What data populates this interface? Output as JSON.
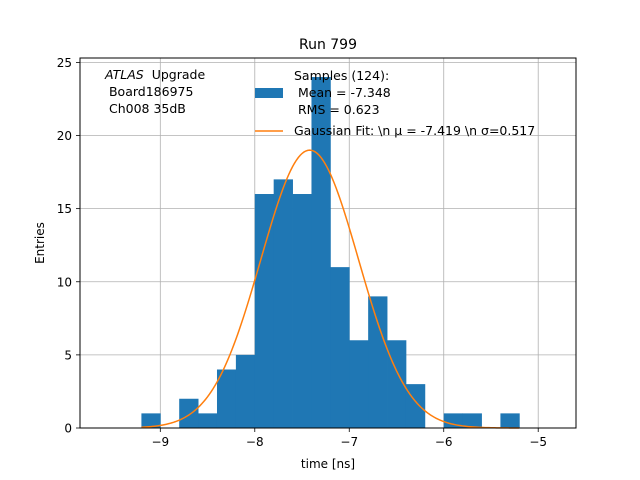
{
  "chart_data": {
    "type": "bar",
    "title": "Run 799",
    "xlabel": "time [ns]",
    "ylabel": "Entries",
    "xlim": [
      -9.85,
      -4.6
    ],
    "ylim": [
      0,
      25.3
    ],
    "grid": true,
    "xticks": [
      -9,
      -8,
      -7,
      -6,
      -5
    ],
    "xtick_labels": [
      "−9",
      "−8",
      "−7",
      "−6",
      "−5"
    ],
    "yticks": [
      0,
      5,
      10,
      15,
      20,
      25
    ],
    "ytick_labels": [
      "0",
      "5",
      "10",
      "15",
      "20",
      "25"
    ],
    "annotation": {
      "lines": [
        "Upgrade",
        " Board186975",
        " Ch008 35dB"
      ],
      "italic_prefix": "ATLAS"
    },
    "legend": {
      "position": "top-center",
      "histogram_label_lines": [
        "Samples (124):",
        " Mean = -7.348",
        " RMS = 0.623"
      ],
      "fit_label": "Gaussian Fit: \\n μ = -7.419 \\n σ=0.517"
    },
    "bin_edges": [
      -9.2,
      -9.0,
      -8.8,
      -8.6,
      -8.4,
      -8.2,
      -8.0,
      -7.8,
      -7.6,
      -7.4,
      -7.2,
      -7.0,
      -6.8,
      -6.6,
      -6.4,
      -6.2,
      -6.0,
      -5.8,
      -5.6,
      -5.4,
      -5.2,
      -5.0
    ],
    "series": [
      {
        "name": "Samples (124)",
        "type": "histogram",
        "color": "#1f77b4",
        "values": [
          1,
          0,
          2,
          1,
          4,
          5,
          16,
          17,
          16,
          24,
          11,
          6,
          9,
          6,
          3,
          0,
          1,
          1,
          0,
          1,
          0
        ]
      },
      {
        "name": "Gaussian Fit",
        "type": "line",
        "color": "#ff7f0e",
        "mu": -7.419,
        "sigma": 0.517,
        "amplitude": 19.0,
        "x_range": [
          -9.2,
          -5.2
        ]
      }
    ]
  }
}
